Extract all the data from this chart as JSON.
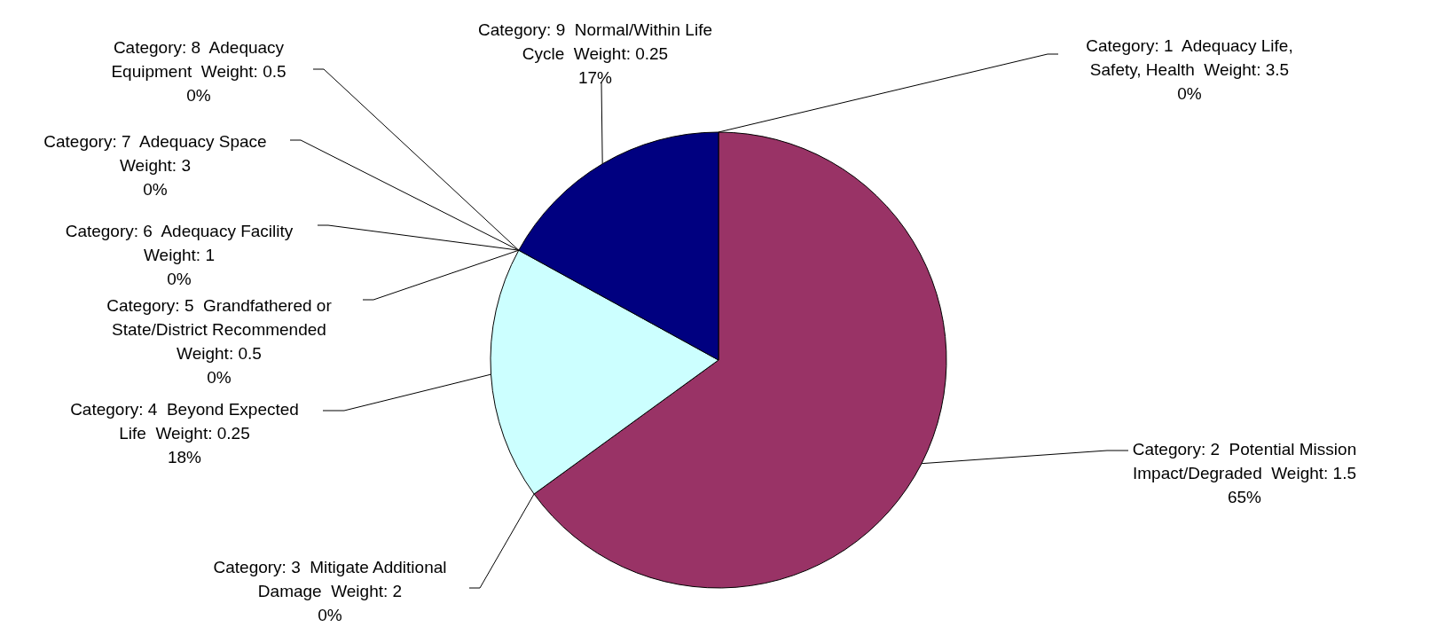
{
  "chart_data": {
    "type": "pie",
    "categories": [
      "Category: 1  Adequacy Life, Safety, Health  Weight: 3.5",
      "Category: 2  Potential Mission Impact/Degraded  Weight: 1.5",
      "Category: 3  Mitigate Additional Damage  Weight: 2",
      "Category: 4  Beyond Expected Life  Weight: 0.25",
      "Category: 5  Grandfathered or State/District Recommended Weight: 0.5",
      "Category: 6  Adequacy Facility Weight: 1",
      "Category: 7  Adequacy Space Weight: 3",
      "Category: 8  Adequacy Equipment  Weight: 0.5",
      "Category: 9  Normal/Within Life Cycle  Weight: 0.25"
    ],
    "values": [
      0,
      65,
      0,
      18,
      0,
      0,
      0,
      0,
      17
    ],
    "value_labels": [
      "0%",
      "65%",
      "0%",
      "18%",
      "0%",
      "0%",
      "0%",
      "0%",
      "17%"
    ],
    "colors": [
      "#9999ff",
      "#993366",
      "#ffffcc",
      "#ccffff",
      "#660066",
      "#ff8080",
      "#0066cc",
      "#ccccff",
      "#000080"
    ],
    "legend": false
  }
}
